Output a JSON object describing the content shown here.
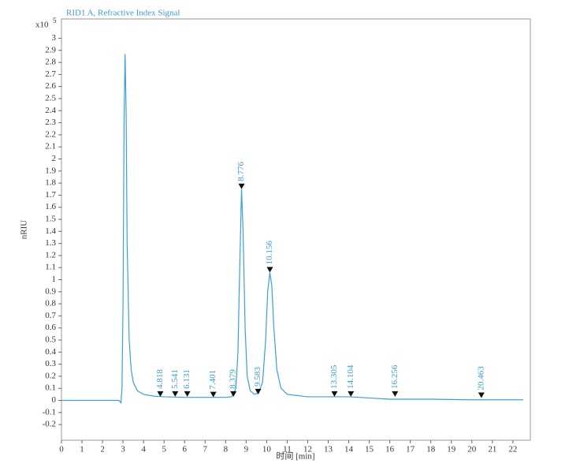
{
  "chart_data": {
    "type": "line",
    "title": "RID1 A, Refractive Index Signal",
    "y_label": "nRIU",
    "x_label": "时间 [min]",
    "y_multiplier": {
      "base": "x10",
      "exponent": "5"
    },
    "xlim": [
      0,
      22.85
    ],
    "ylim": [
      -0.33,
      3.16
    ],
    "xticks": [
      0,
      1,
      2,
      3,
      4,
      5,
      6,
      7,
      8,
      9,
      10,
      11,
      12,
      13,
      14,
      15,
      16,
      17,
      18,
      19,
      20,
      21,
      22
    ],
    "yticks": [
      -0.2,
      -0.1,
      0,
      0.1,
      0.2,
      0.3,
      0.4,
      0.5,
      0.6,
      0.7,
      0.8,
      0.9,
      1,
      1.1,
      1.2,
      1.3,
      1.4,
      1.5,
      1.6,
      1.7,
      1.8,
      1.9,
      2,
      2.1,
      2.2,
      2.3,
      2.4,
      2.5,
      2.6,
      2.7,
      2.8,
      2.9,
      3
    ],
    "series": [
      {
        "color": "#3aa0d8",
        "x": [
          0,
          2.8,
          2.9,
          2.95,
          3.0,
          3.05,
          3.1,
          3.15,
          3.2,
          3.3,
          3.4,
          3.5,
          3.7,
          4.0,
          4.5,
          5,
          6,
          7,
          8,
          8.3,
          8.5,
          8.6,
          8.7,
          8.776,
          8.85,
          8.95,
          9.05,
          9.2,
          9.4,
          9.6,
          9.8,
          9.95,
          10.05,
          10.156,
          10.25,
          10.35,
          10.5,
          10.7,
          11,
          11.5,
          12,
          13,
          14,
          15,
          16,
          18,
          20,
          22.5
        ],
        "values": [
          0,
          0,
          -0.02,
          0.1,
          0.8,
          2.3,
          2.87,
          2.4,
          1.3,
          0.5,
          0.25,
          0.15,
          0.08,
          0.05,
          0.035,
          0.03,
          0.025,
          0.025,
          0.025,
          0.03,
          0.1,
          0.4,
          1.2,
          1.75,
          1.4,
          0.6,
          0.2,
          0.08,
          0.05,
          0.06,
          0.15,
          0.5,
          0.9,
          1.06,
          0.95,
          0.6,
          0.25,
          0.1,
          0.05,
          0.04,
          0.03,
          0.03,
          0.03,
          0.02,
          0.01,
          0.01,
          0.005,
          0.005
        ]
      }
    ],
    "peaks": {
      "x": [
        4.818,
        5.541,
        6.131,
        7.401,
        8.379,
        8.776,
        9.583,
        10.156,
        13.305,
        14.104,
        16.256,
        20.463
      ],
      "y": [
        0.03,
        0.03,
        0.03,
        0.025,
        0.03,
        1.75,
        0.05,
        1.06,
        0.03,
        0.03,
        0.03,
        0.02
      ]
    }
  }
}
